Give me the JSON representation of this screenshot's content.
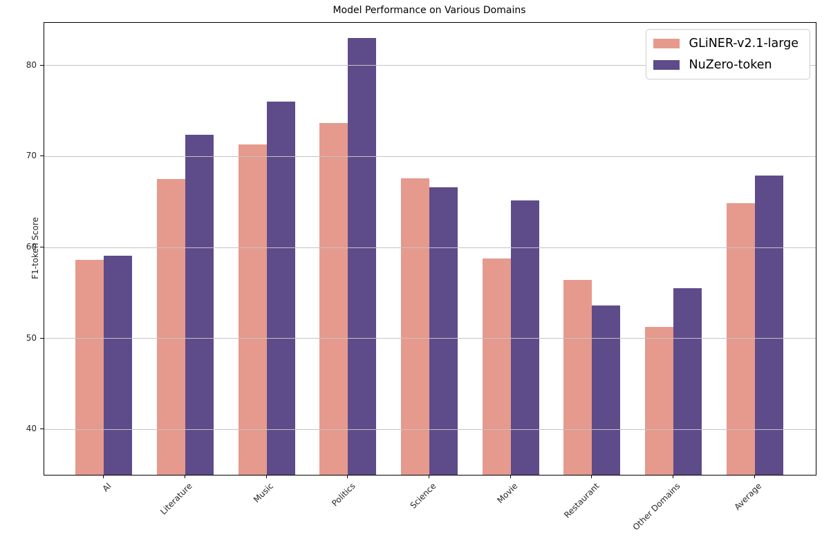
{
  "chart_data": {
    "type": "bar",
    "title": "Model Performance on Various Domains",
    "xlabel": "",
    "ylabel": "F1-token Score",
    "categories": [
      "AI",
      "Literature",
      "Music",
      "Politics",
      "Science",
      "Movie",
      "Restaurant",
      "Other Domains",
      "Average"
    ],
    "series": [
      {
        "name": "GLiNER-v2.1-large",
        "color": "#e59a8d",
        "values": [
          58.6,
          67.5,
          71.3,
          73.7,
          67.6,
          58.8,
          56.4,
          51.3,
          64.9
        ]
      },
      {
        "name": "NuZero-token",
        "color": "#5e4b8a",
        "values": [
          59.1,
          72.4,
          76.0,
          83.0,
          66.6,
          65.2,
          53.6,
          55.5,
          67.9
        ]
      }
    ],
    "ylim": [
      35,
      84.7
    ],
    "yticks": [
      40,
      50,
      60,
      70,
      80
    ],
    "grid": true,
    "legend_position": "upper right",
    "colors": {
      "grid": "#c3c3c3",
      "spine": "#000000",
      "background": "#ffffff"
    }
  }
}
